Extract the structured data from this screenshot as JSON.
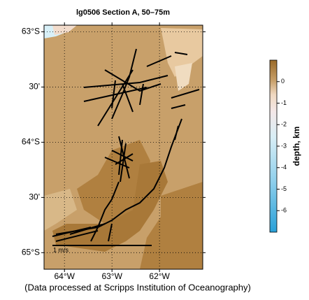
{
  "map": {
    "title": "lg0506 Section A, 50–75m",
    "lonlim": [
      -64.43,
      -61.09
    ],
    "latlim": [
      -65.15,
      -62.94
    ],
    "lat_ticks": [
      {
        "value": -63,
        "label": "63°S"
      },
      {
        "value": -63.5,
        "label": "30'"
      },
      {
        "value": -64,
        "label": "64°S"
      },
      {
        "value": -64.5,
        "label": "30'"
      },
      {
        "value": -65,
        "label": "65°S"
      }
    ],
    "lon_ticks": [
      {
        "value": -64,
        "label": "64°W"
      },
      {
        "value": -63,
        "label": "63°W"
      },
      {
        "value": -62,
        "label": "62°W"
      }
    ],
    "grid": true,
    "scale_label": "1 m/s",
    "colorbar": {
      "label": "depth, km",
      "clim": [
        -7,
        1
      ],
      "ticks": [
        0,
        -1,
        -2,
        -3,
        -4,
        -5,
        -6
      ]
    },
    "footer": "(Data processed at Scripps Institution of Oceanography)"
  }
}
